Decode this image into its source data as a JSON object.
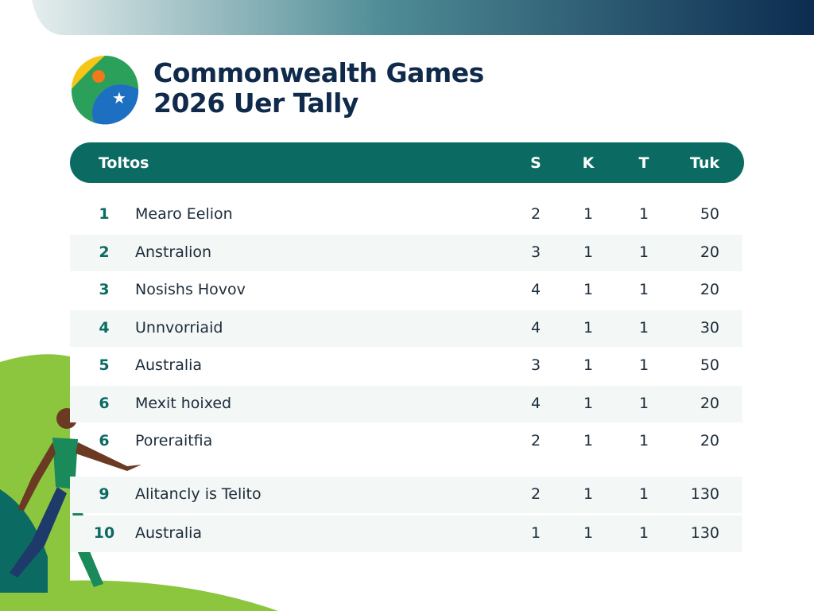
{
  "header": {
    "title_lines": [
      "Commonwealth Games",
      "2026 Uer Tally"
    ]
  },
  "table": {
    "columns": [
      "Toltos",
      "S",
      "K",
      "T",
      "Tuk"
    ],
    "rows": [
      [
        "1",
        "Mearo Eelion",
        "2",
        "1",
        "1",
        "50"
      ],
      [
        "2",
        "Anstralion",
        "3",
        "1",
        "1",
        "20"
      ],
      [
        "3",
        "Nosishs Hovov",
        "4",
        "1",
        "1",
        "20"
      ],
      [
        "4",
        "Unnvorriaid",
        "4",
        "1",
        "1",
        "30"
      ],
      [
        "5",
        "Australia",
        "3",
        "1",
        "1",
        "50"
      ],
      [
        "6",
        "Mexit hoixed",
        "4",
        "1",
        "1",
        "20"
      ],
      [
        "6",
        "Poreraitfia",
        "2",
        "1",
        "1",
        "20"
      ],
      [
        "9",
        "Alitancly is Telito",
        "2",
        "1",
        "1",
        "130"
      ],
      [
        "10",
        "Australia",
        "1",
        "1",
        "1",
        "130"
      ]
    ]
  }
}
